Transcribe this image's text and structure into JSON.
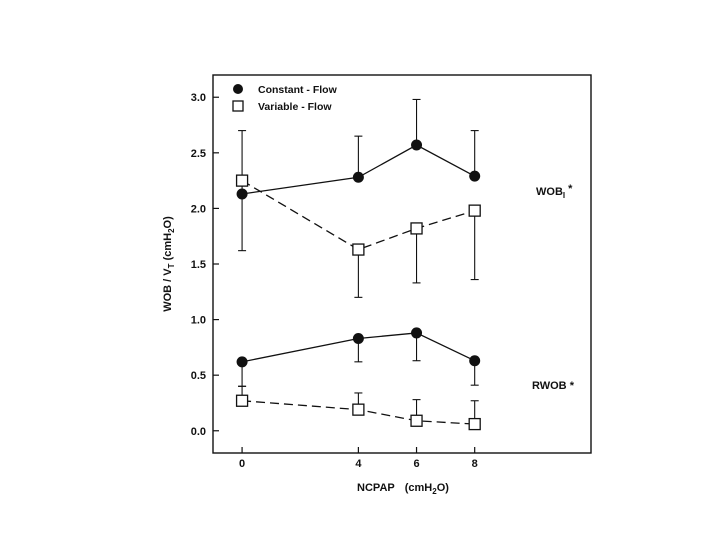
{
  "chart_data": {
    "type": "line",
    "x_axis": {
      "label_main": "NCPAP",
      "label_unit_prefix": "(cmH",
      "label_unit_sub": "2",
      "label_unit_suffix": "O)",
      "ticks": [
        "0",
        "4",
        "6",
        "8"
      ],
      "range": [
        -1,
        12
      ]
    },
    "y_axis": {
      "label_prefix": "WOB / V",
      "label_sub": "T",
      "label_unit": " (cmH",
      "label_unit_sub": "2",
      "label_unit_suffix": "O)",
      "ticks": [
        "0.0",
        "0.5",
        "1.0",
        "1.5",
        "2.0",
        "2.5",
        "3.0"
      ],
      "range": [
        -0.2,
        3.2
      ]
    },
    "x": [
      0,
      4,
      6,
      8
    ],
    "series": [
      {
        "name": "Constant - Flow",
        "group": "WOBI",
        "marker": "filled-circle",
        "line": "solid",
        "values": [
          2.13,
          2.28,
          2.57,
          2.29
        ],
        "error_upper": [
          0.57,
          0.37,
          0.41,
          0.41
        ],
        "error_lower": [
          0.51,
          0.0,
          0.0,
          0.0
        ]
      },
      {
        "name": "Variable - Flow",
        "group": "WOBI",
        "marker": "open-square",
        "line": "dashed",
        "values": [
          2.25,
          1.63,
          1.82,
          1.98
        ],
        "error_upper": [
          0.0,
          0.0,
          0.0,
          0.0
        ],
        "error_lower": [
          0.0,
          0.43,
          0.49,
          0.62
        ]
      },
      {
        "name": "Constant - Flow",
        "group": "RWOB",
        "marker": "filled-circle",
        "line": "solid",
        "values": [
          0.62,
          0.83,
          0.88,
          0.63
        ],
        "error_upper": [
          0.0,
          0.0,
          0.0,
          0.0
        ],
        "error_lower": [
          0.22,
          0.21,
          0.25,
          0.22
        ]
      },
      {
        "name": "Variable - Flow",
        "group": "RWOB",
        "marker": "open-square",
        "line": "dashed",
        "values": [
          0.27,
          0.19,
          0.09,
          0.06
        ],
        "error_upper": [
          0.13,
          0.15,
          0.19,
          0.21
        ],
        "error_lower": [
          0.0,
          0.0,
          0.0,
          0.0
        ]
      }
    ],
    "legend": {
      "placement": "top-left",
      "entries": [
        {
          "label": "Constant - Flow",
          "marker": "filled-circle"
        },
        {
          "label": "Variable - Flow",
          "marker": "open-square"
        }
      ]
    },
    "annotations": [
      {
        "text_main": "WOB",
        "text_sub": "I",
        "text_suffix": " *",
        "at": {
          "x": 8,
          "y": 2.1
        }
      },
      {
        "text_main": "RWOB",
        "text_sub": "",
        "text_suffix": " *",
        "at": {
          "x": 8,
          "y": 0.35
        }
      }
    ],
    "grid": false
  }
}
